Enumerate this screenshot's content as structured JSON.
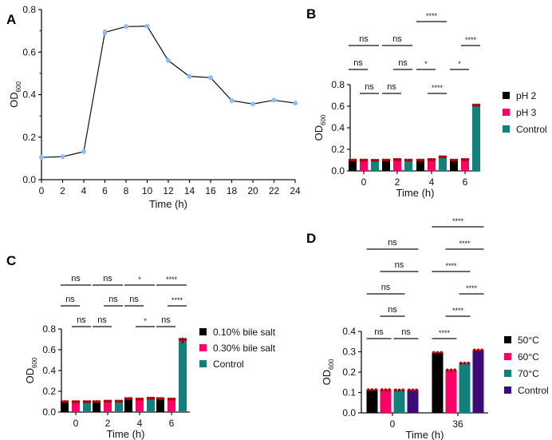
{
  "chart_data": [
    {
      "panel": "A",
      "type": "line",
      "title": "",
      "xlabel": "Time (h)",
      "ylabel": "OD",
      "ylabel_sub": "600",
      "x": [
        0,
        2,
        4,
        6,
        8,
        10,
        12,
        14,
        16,
        18,
        20,
        22,
        24
      ],
      "series": [
        {
          "name": "OD600",
          "values": [
            0.105,
            0.108,
            0.132,
            0.693,
            0.72,
            0.722,
            0.56,
            0.486,
            0.48,
            0.372,
            0.356,
            0.374,
            0.36
          ],
          "color": "#8fbcf0",
          "line_color": "#111111"
        }
      ],
      "error": [
        0,
        0,
        0,
        0.012,
        0,
        0,
        0,
        0,
        0,
        0,
        0,
        0,
        0
      ],
      "xlim": [
        0,
        24
      ],
      "ylim": [
        0,
        0.8
      ],
      "xticks": [
        "0",
        "2",
        "4",
        "6",
        "8",
        "10",
        "12",
        "14",
        "16",
        "18",
        "20",
        "22",
        "24"
      ],
      "yticks": [
        "0.0",
        "0.2",
        "0.4",
        "0.6",
        "0.8"
      ],
      "grid": false
    },
    {
      "panel": "B",
      "type": "bar",
      "xlabel": "Time (h)",
      "ylabel": "OD",
      "ylabel_sub": "600",
      "categories": [
        "0",
        "2",
        "4",
        "6"
      ],
      "series": [
        {
          "name": "pH 2",
          "color": "#000000",
          "values": [
            0.1,
            0.1,
            0.1,
            0.1
          ]
        },
        {
          "name": "pH 3",
          "color": "#ff0066",
          "values": [
            0.1,
            0.105,
            0.105,
            0.105
          ]
        },
        {
          "name": "Control",
          "color": "#13807c",
          "values": [
            0.098,
            0.1,
            0.13,
            0.61
          ]
        }
      ],
      "ylim": [
        0,
        0.8
      ],
      "yticks": [
        "0.0",
        "0.2",
        "0.4",
        "0.6",
        "0.8"
      ],
      "legend": "right",
      "significance": [
        {
          "group": 0,
          "from": 1,
          "to": 2,
          "level": 0,
          "label": "ns"
        },
        {
          "group": 0,
          "from": 0,
          "to": 1,
          "level": 1,
          "label": "ns"
        },
        {
          "group": 0,
          "from": 0,
          "to": 2,
          "level": 2,
          "label": "ns"
        },
        {
          "group": 1,
          "from": 0,
          "to": 1,
          "level": 0,
          "label": "ns"
        },
        {
          "group": 1,
          "from": 1,
          "to": 2,
          "level": 1,
          "label": "ns"
        },
        {
          "group": 1,
          "from": 0,
          "to": 2,
          "level": 2,
          "label": "ns"
        },
        {
          "group": 2,
          "from": 1,
          "to": 2,
          "level": 0,
          "label": "****"
        },
        {
          "group": 2,
          "from": 0,
          "to": 1,
          "level": 1,
          "label": "*"
        },
        {
          "group": 2,
          "from": 0,
          "to": 2,
          "level": 3,
          "label": "****"
        },
        {
          "group": 3,
          "from": 0,
          "to": 1,
          "level": 1,
          "label": "*"
        },
        {
          "group": 3,
          "from": 1,
          "to": 2,
          "level": 2,
          "label": "****"
        },
        {
          "group": 3,
          "from": 0,
          "to": 2,
          "level": 4,
          "label": "****"
        }
      ]
    },
    {
      "panel": "C",
      "type": "bar",
      "xlabel": "Time (h)",
      "ylabel": "OD",
      "ylabel_sub": "600",
      "categories": [
        "0",
        "2",
        "4",
        "6"
      ],
      "series": [
        {
          "name": "0.10% bile salt",
          "color": "#000000",
          "values": [
            0.1,
            0.1,
            0.13,
            0.13
          ]
        },
        {
          "name": "0.30% bile salt",
          "color": "#ff0066",
          "values": [
            0.1,
            0.105,
            0.125,
            0.125
          ]
        },
        {
          "name": "Control",
          "color": "#13807c",
          "values": [
            0.1,
            0.105,
            0.133,
            0.7
          ]
        }
      ],
      "error_control_6h": 0.02,
      "ylim": [
        0,
        0.8
      ],
      "yticks": [
        "0.0",
        "0.2",
        "0.4",
        "0.6",
        "0.8"
      ],
      "legend": "right",
      "significance": [
        {
          "group": 0,
          "from": 1,
          "to": 2,
          "level": 0,
          "label": "ns"
        },
        {
          "group": 0,
          "from": 0,
          "to": 1,
          "level": 1,
          "label": "ns"
        },
        {
          "group": 0,
          "from": 0,
          "to": 2,
          "level": 2,
          "label": "ns"
        },
        {
          "group": 1,
          "from": 0,
          "to": 1,
          "level": 0,
          "label": "ns"
        },
        {
          "group": 1,
          "from": 1,
          "to": 2,
          "level": 1,
          "label": "ns"
        },
        {
          "group": 1,
          "from": 0,
          "to": 2,
          "level": 2,
          "label": "ns"
        },
        {
          "group": 2,
          "from": 1,
          "to": 2,
          "level": 0,
          "label": "*"
        },
        {
          "group": 2,
          "from": 0,
          "to": 1,
          "level": 1,
          "label": "ns"
        },
        {
          "group": 2,
          "from": 0,
          "to": 2,
          "level": 2,
          "label": "*"
        },
        {
          "group": 3,
          "from": 0,
          "to": 1,
          "level": 0,
          "label": "ns"
        },
        {
          "group": 3,
          "from": 1,
          "to": 2,
          "level": 1,
          "label": "****"
        },
        {
          "group": 3,
          "from": 0,
          "to": 2,
          "level": 2,
          "label": "****"
        }
      ]
    },
    {
      "panel": "D",
      "type": "bar",
      "xlabel": "Time (h)",
      "ylabel": "OD",
      "ylabel_sub": "600",
      "categories": [
        "0",
        "36"
      ],
      "series": [
        {
          "name": "50°C",
          "color": "#000000",
          "values": [
            0.113,
            0.296
          ]
        },
        {
          "name": "60°C",
          "color": "#ff0066",
          "values": [
            0.113,
            0.21
          ]
        },
        {
          "name": "70°C",
          "color": "#13807c",
          "values": [
            0.112,
            0.244
          ]
        },
        {
          "name": "Control",
          "color": "#3d0a7a",
          "values": [
            0.112,
            0.308
          ]
        }
      ],
      "ylim": [
        0,
        0.4
      ],
      "yticks": [
        "0.0",
        "0.1",
        "0.2",
        "0.3",
        "0.4"
      ],
      "legend": "right",
      "significance": [
        {
          "group": 0,
          "from": 0,
          "to": 1,
          "level": 0,
          "label": "ns"
        },
        {
          "group": 0,
          "from": 2,
          "to": 3,
          "level": 0,
          "label": "ns"
        },
        {
          "group": 0,
          "from": 1,
          "to": 2,
          "level": 1,
          "label": "ns"
        },
        {
          "group": 0,
          "from": 0,
          "to": 2,
          "level": 2,
          "label": "ns"
        },
        {
          "group": 0,
          "from": 1,
          "to": 3,
          "level": 3,
          "label": "ns"
        },
        {
          "group": 0,
          "from": 0,
          "to": 3,
          "level": 4,
          "label": "ns"
        },
        {
          "group": 1,
          "from": 0,
          "to": 1,
          "level": 0,
          "label": "****"
        },
        {
          "group": 1,
          "from": 1,
          "to": 2,
          "level": 1,
          "label": "****"
        },
        {
          "group": 1,
          "from": 2,
          "to": 3,
          "level": 2,
          "label": "****"
        },
        {
          "group": 1,
          "from": 0,
          "to": 2,
          "level": 3,
          "label": "****"
        },
        {
          "group": 1,
          "from": 1,
          "to": 3,
          "level": 4,
          "label": "****"
        },
        {
          "group": 1,
          "from": 0,
          "to": 3,
          "level": 5,
          "label": "****"
        }
      ]
    }
  ],
  "panel_labels": [
    "A",
    "B",
    "C",
    "D"
  ],
  "dot_color": "#b00000",
  "axis_color": "#111111"
}
